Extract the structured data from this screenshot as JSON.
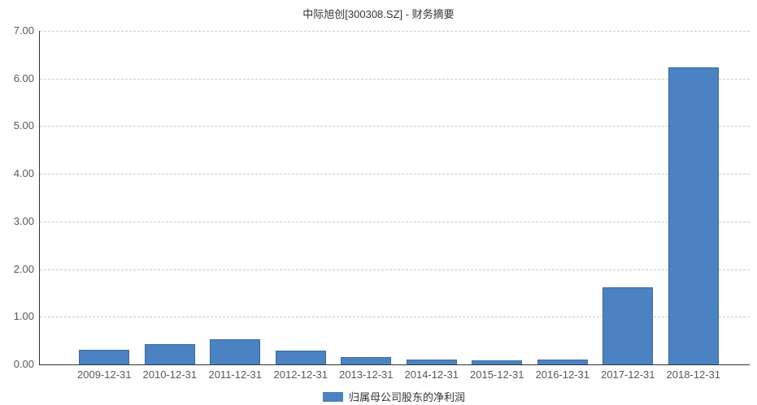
{
  "title": "中际旭创[300308.SZ] - 财务摘要",
  "legend": {
    "items": [
      {
        "label": "归属母公司股东的净利润",
        "color": "#4A82C2"
      }
    ]
  },
  "chart_data": {
    "type": "bar",
    "title": "中际旭创[300308.SZ] - 财务摘要",
    "categories": [
      "2009-12-31",
      "2010-12-31",
      "2011-12-31",
      "2012-12-31",
      "2013-12-31",
      "2014-12-31",
      "2015-12-31",
      "2016-12-31",
      "2017-12-31",
      "2018-12-31"
    ],
    "series": [
      {
        "name": "归属母公司股东的净利润",
        "values": [
          0.31,
          0.42,
          0.52,
          0.29,
          0.15,
          0.11,
          0.08,
          0.11,
          1.62,
          6.24
        ]
      }
    ],
    "xlabel": "",
    "ylabel": "",
    "ylim": [
      0,
      7
    ],
    "ytick_step": 1.0,
    "ytick_labels": [
      "0.00",
      "1.00",
      "2.00",
      "3.00",
      "4.00",
      "5.00",
      "6.00",
      "7.00"
    ],
    "grid": "horizontal-dashed",
    "legend_position": "bottom",
    "bar_color": "#4A82C2"
  },
  "colors": {
    "bar": "#4A82C2",
    "axis": "#333333",
    "gridline": "#cccccc",
    "title_text": "#333333",
    "tick_text": "#595959",
    "background": "#ffffff"
  }
}
